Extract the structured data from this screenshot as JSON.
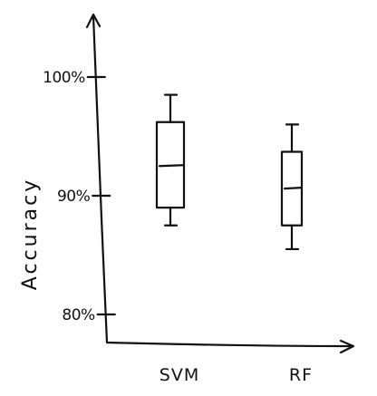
{
  "chart_data": {
    "type": "box",
    "ylabel": "Accuracy",
    "xlabel": "",
    "ylim": [
      78,
      104
    ],
    "yticks": [
      {
        "value": 80,
        "label": "80%"
      },
      {
        "value": 90,
        "label": "90%"
      },
      {
        "value": 100,
        "label": "100%"
      }
    ],
    "categories": [
      "SVM",
      "RF"
    ],
    "boxes": [
      {
        "name": "SVM",
        "min": 87.5,
        "q1": 89.0,
        "median": 92.5,
        "q3": 96.2,
        "max": 98.5
      },
      {
        "name": "RF",
        "min": 85.5,
        "q1": 87.5,
        "median": 90.6,
        "q3": 93.7,
        "max": 96.0
      }
    ],
    "grid": false,
    "colors": {
      "ink": "#111111",
      "background": "#ffffff"
    }
  }
}
